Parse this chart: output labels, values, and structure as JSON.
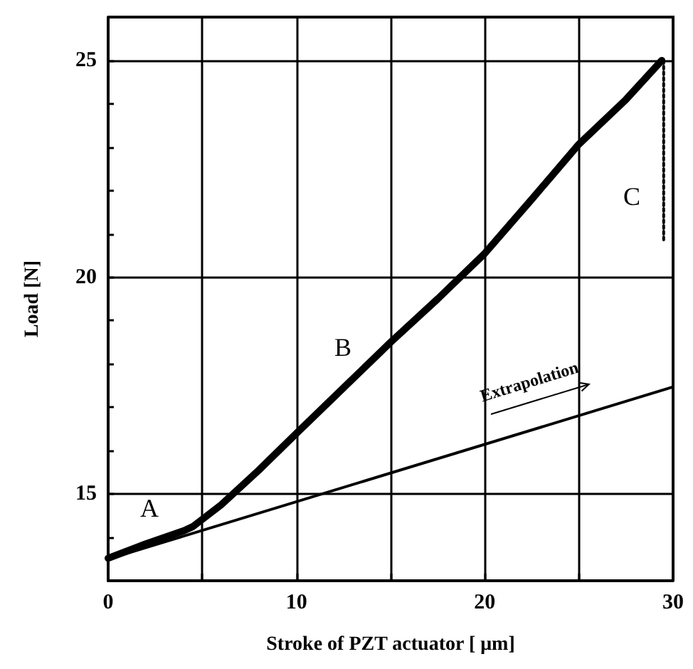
{
  "chart_data": {
    "type": "line",
    "xlabel": "Stroke of PZT actuator [ μm]",
    "ylabel": "Load [N]",
    "xlim": [
      0,
      30
    ],
    "xticks": [
      0,
      {
        "value": 5,
        "label": null
      },
      10,
      {
        "value": 15,
        "label": null
      },
      20,
      {
        "value": 25,
        "label": null
      },
      30
    ],
    "ylim": [
      13,
      26
    ],
    "yticks": [
      {
        "value": 13,
        "label": null
      },
      {
        "value": 14,
        "label": null
      },
      15,
      {
        "value": 16,
        "label": null
      },
      {
        "value": 17,
        "label": null
      },
      {
        "value": 18,
        "label": null
      },
      {
        "value": 19,
        "label": null
      },
      20,
      {
        "value": 21,
        "label": null
      },
      {
        "value": 22,
        "label": null
      },
      {
        "value": 23,
        "label": null
      },
      {
        "value": 24,
        "label": null
      },
      25,
      {
        "value": 26,
        "label": null
      }
    ],
    "grid": true,
    "marker": "none",
    "series": [
      {
        "color": "#000000",
        "x": [
          0,
          2,
          4,
          4.5,
          6,
          8,
          10,
          12.5,
          15,
          17.5,
          20,
          22.5,
          25,
          27.5,
          29.4
        ],
        "values": [
          13.52,
          13.85,
          14.15,
          14.25,
          14.75,
          15.55,
          16.4,
          17.45,
          18.5,
          19.5,
          20.55,
          21.8,
          23.07,
          24.1,
          25
        ]
      },
      {
        "color": "#000000",
        "line_style": "dotted",
        "x": [
          29.5,
          29.5
        ],
        "values": [
          25,
          20.8
        ]
      },
      {
        "color": "#000000",
        "x": [
          0,
          30
        ],
        "values": [
          13.5,
          17.47
        ]
      }
    ],
    "annotations": [
      "A",
      "B",
      "C",
      "Extrapolation"
    ]
  }
}
